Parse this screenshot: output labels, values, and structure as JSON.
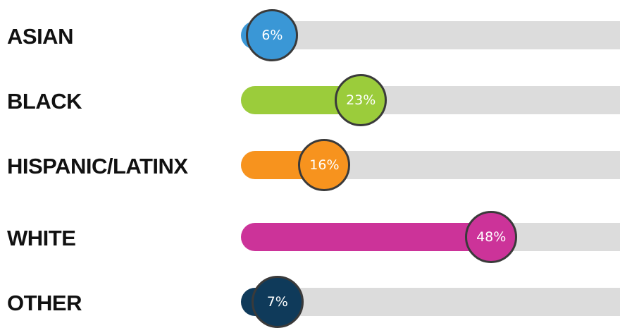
{
  "chart_data": {
    "type": "bar",
    "orientation": "horizontal",
    "xlim": [
      0,
      100
    ],
    "categories": [
      "ASIAN",
      "BLACK",
      "HISPANIC/LATINX",
      "WHITE",
      "OTHER"
    ],
    "values": [
      6,
      23,
      16,
      48,
      7
    ],
    "value_labels": [
      "6%",
      "23%",
      "16%",
      "48%",
      "7%"
    ],
    "colors": [
      "#3a97d6",
      "#9bcc3b",
      "#f7931e",
      "#cc3399",
      "#0f3a5a"
    ],
    "track_color": "#dcdcdc"
  }
}
